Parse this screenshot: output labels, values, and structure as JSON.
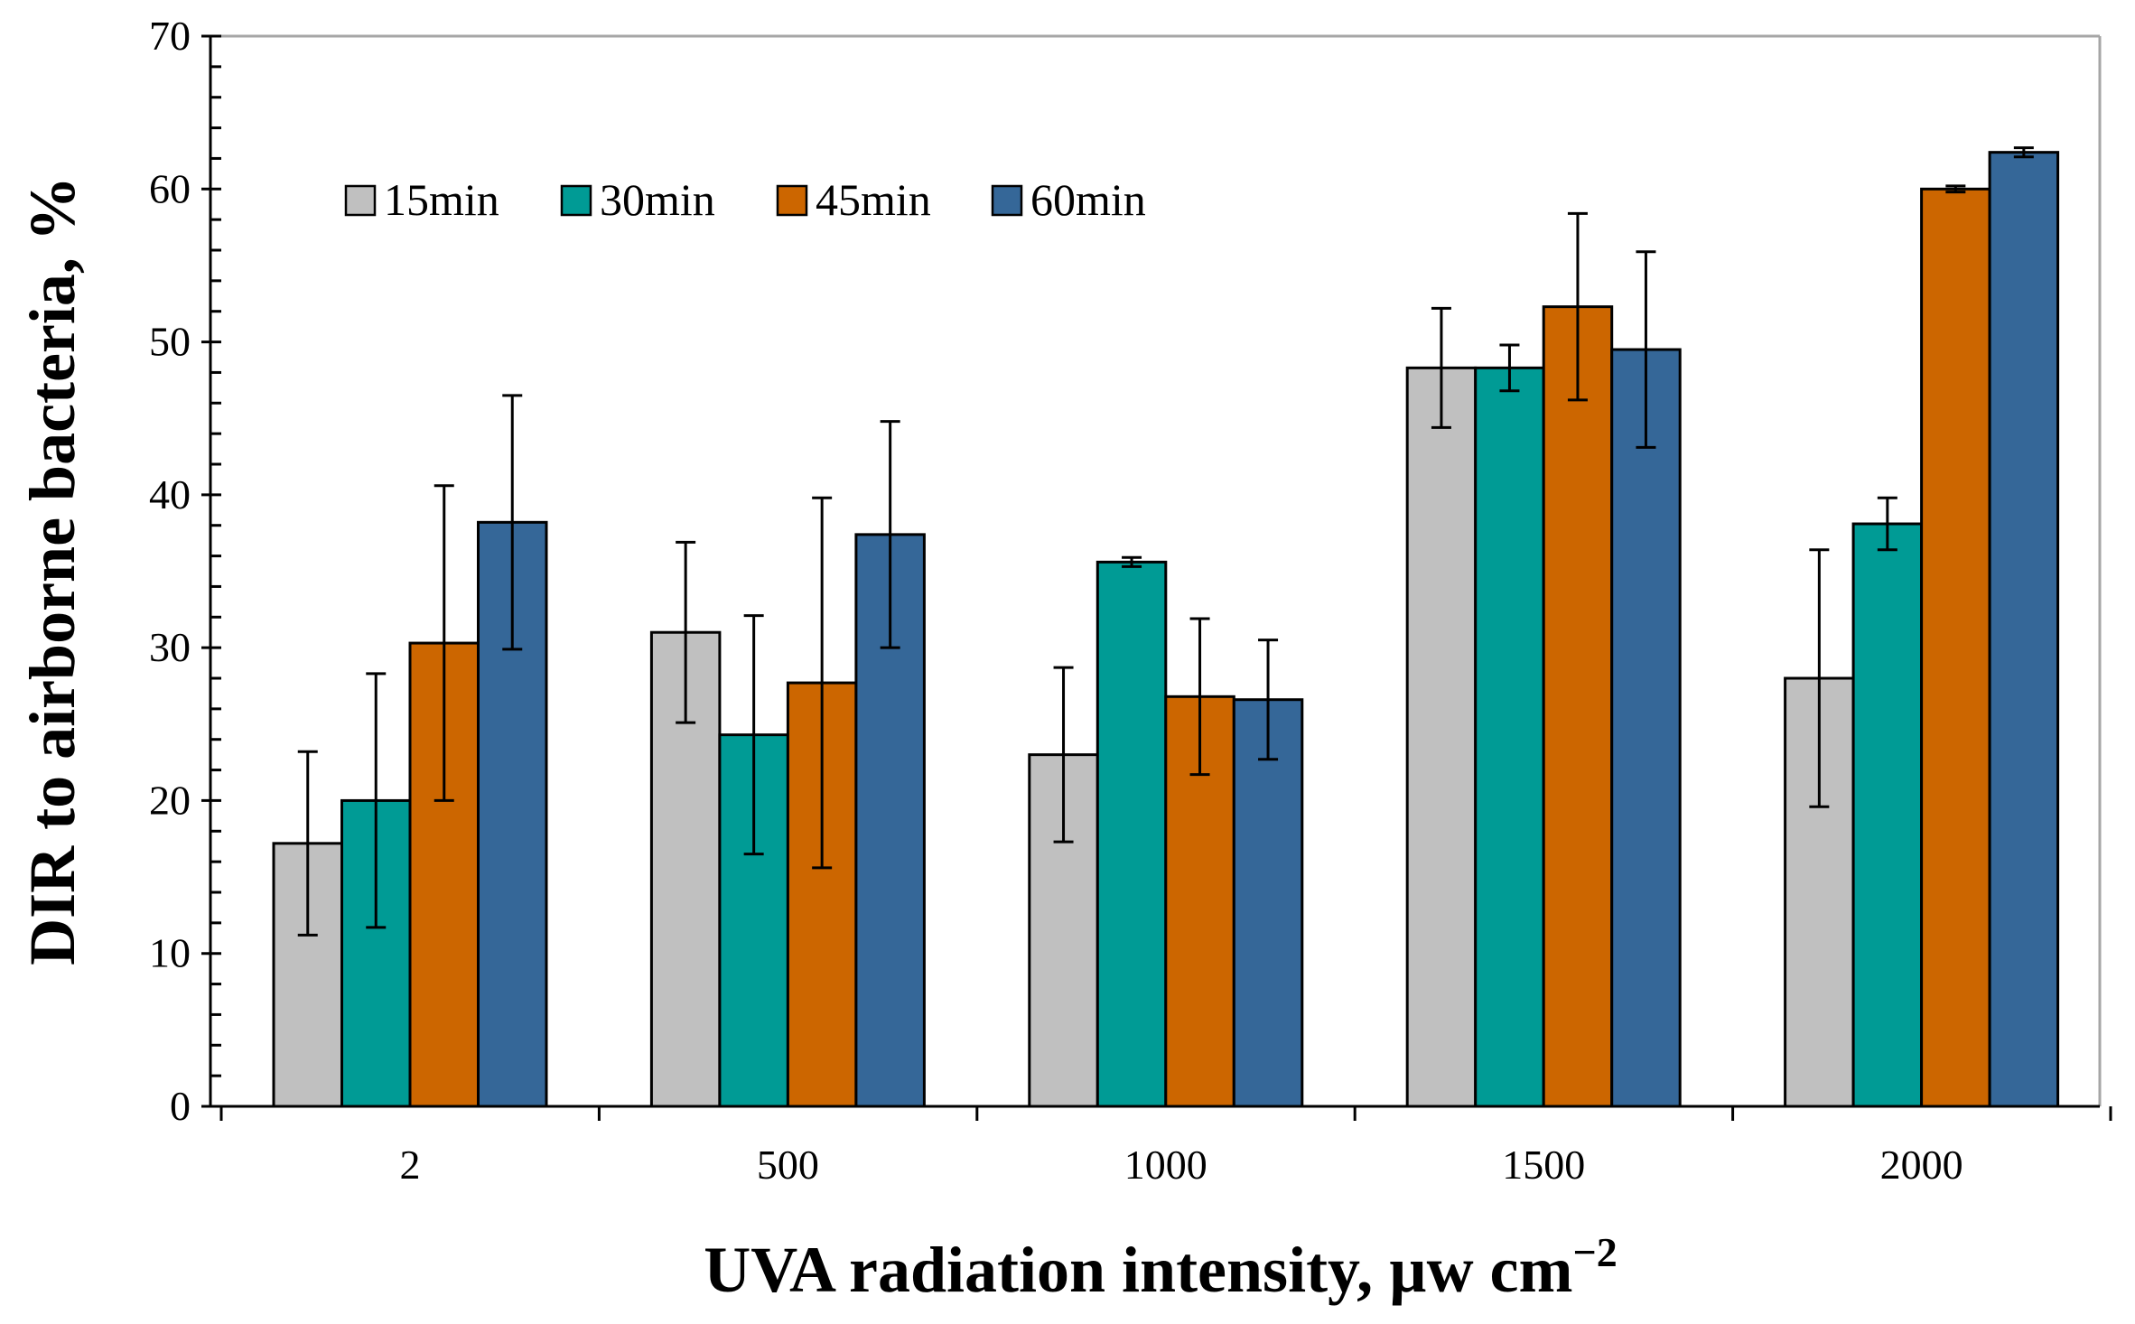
{
  "chart_data": {
    "type": "bar",
    "title": "",
    "xlabel": "UVA radiation intensity, µw cm",
    "xlabel_superscript": "−2",
    "ylabel": "DIR to airborne bacteria, %",
    "ylim": [
      0,
      70
    ],
    "yticks": [
      "0",
      "10",
      "20",
      "30",
      "40",
      "50",
      "60",
      "70"
    ],
    "categories": [
      "2",
      "500",
      "1000",
      "1500",
      "2000"
    ],
    "legend_position": "top-left",
    "series": [
      {
        "name": "15min",
        "color": "#c0c0c0",
        "values": [
          17.2,
          31.0,
          23.0,
          48.3,
          28.0
        ],
        "errors": [
          6.0,
          5.9,
          5.7,
          3.9,
          8.4
        ]
      },
      {
        "name": "30min",
        "color": "#009b95",
        "values": [
          20.0,
          24.3,
          35.6,
          48.3,
          38.1
        ],
        "errors": [
          8.3,
          7.8,
          0.3,
          1.5,
          1.7
        ]
      },
      {
        "name": "45min",
        "color": "#cc6600",
        "values": [
          30.3,
          27.7,
          26.8,
          52.3,
          60.0
        ],
        "errors": [
          10.3,
          12.1,
          5.1,
          6.1,
          0.2
        ]
      },
      {
        "name": "60min",
        "color": "#356798",
        "values": [
          38.2,
          37.4,
          26.6,
          49.5,
          62.4
        ],
        "errors": [
          8.3,
          7.4,
          3.9,
          6.4,
          0.3
        ]
      }
    ]
  }
}
